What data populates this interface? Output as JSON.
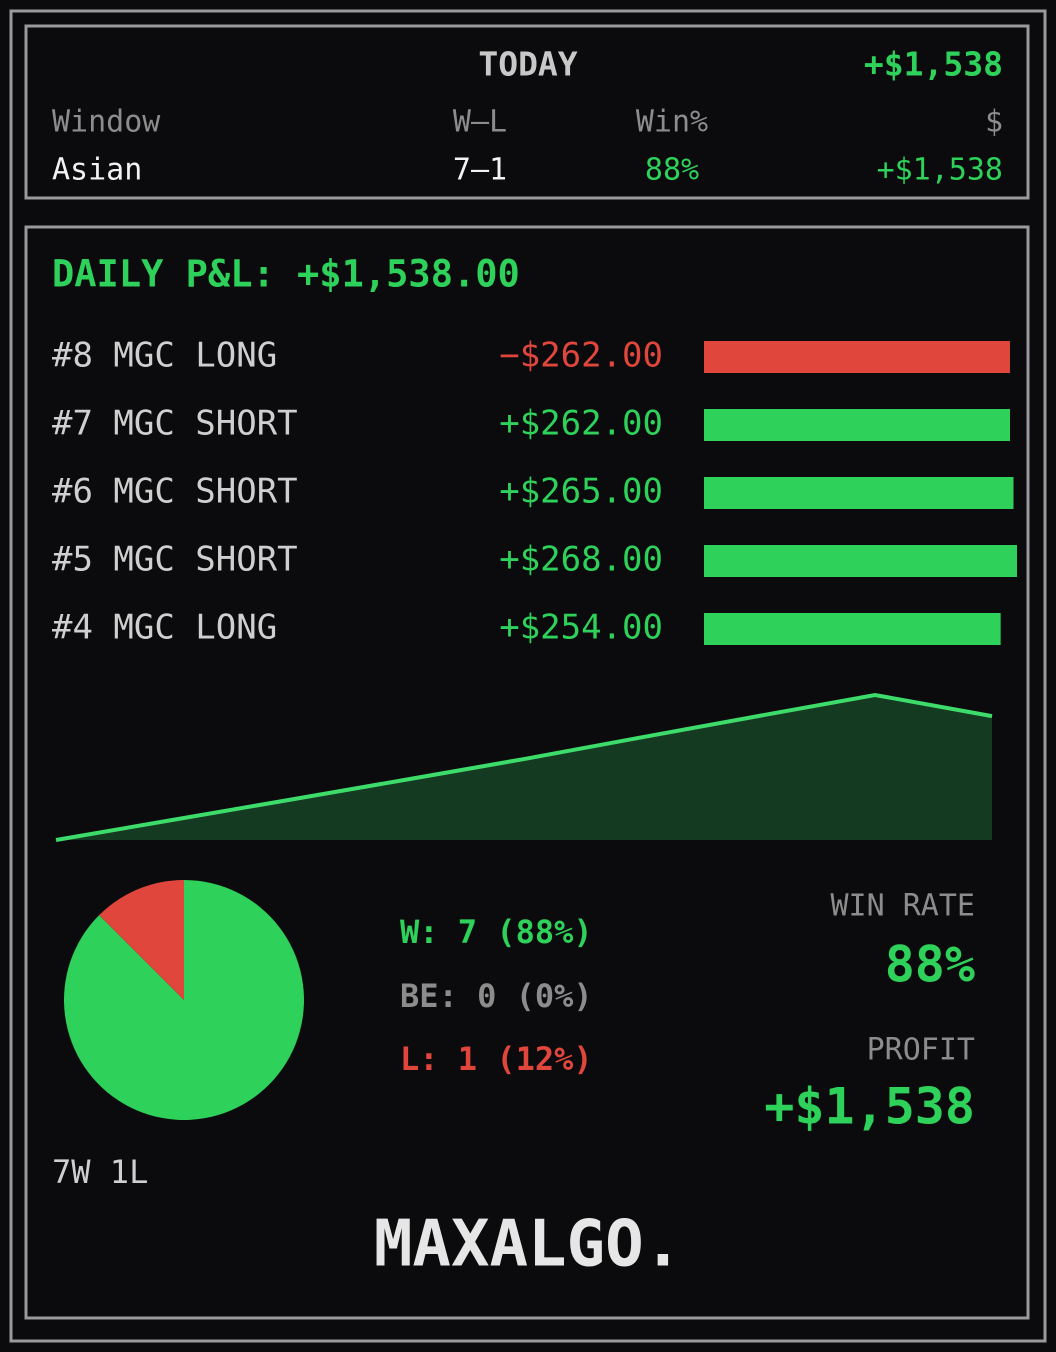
{
  "today": {
    "title": "TODAY",
    "total": "+$1,538",
    "columns": [
      "Window",
      "W–L",
      "Win%",
      "$"
    ],
    "rows": [
      [
        "Asian",
        "7–1",
        "88%",
        "+$1,538"
      ]
    ]
  },
  "daily": {
    "title": "DAILY P&L: +$1,538.00",
    "colors": {
      "positive": "#2ed15a",
      "negative": "#e0463c"
    },
    "trades": [
      {
        "label": "#8 MGC LONG",
        "value": -262,
        "value_label": "−$262.00"
      },
      {
        "label": "#7 MGC SHORT",
        "value": 262,
        "value_label": "+$262.00"
      },
      {
        "label": "#6 MGC SHORT",
        "value": 265,
        "value_label": "+$265.00"
      },
      {
        "label": "#5 MGC SHORT",
        "value": 268,
        "value_label": "+$268.00"
      },
      {
        "label": "#4 MGC LONG",
        "value": 254,
        "value_label": "+$254.00"
      }
    ]
  },
  "equity": {
    "type": "area",
    "values": [
      0,
      250,
      500,
      751,
      1005,
      1273,
      1538,
      1800,
      1538
    ],
    "ylim": [
      0,
      1800
    ],
    "color": "#3ddc6a",
    "fill": "#143a22"
  },
  "outcome": {
    "type": "pie",
    "values": [
      7,
      1
    ],
    "colors": [
      "#2ed15a",
      "#e0463c"
    ],
    "legend": [
      "W: 7 (88%)",
      "BE: 0 (0%)",
      "L: 1 (12%)"
    ],
    "summary": "7W 1L"
  },
  "stats": {
    "win_rate_label": "WIN RATE",
    "win_rate": "88%",
    "profit_label": "PROFIT",
    "profit": "+$1,538"
  },
  "brand": "MAXALGO."
}
